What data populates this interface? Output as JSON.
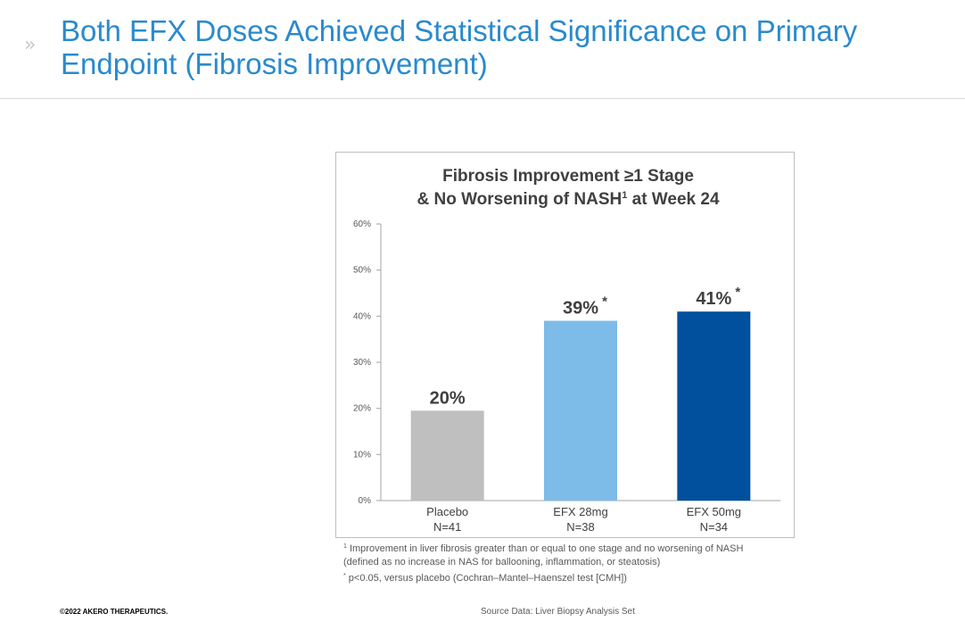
{
  "slide": {
    "chevron": "»",
    "title_line1": "Both EFX Doses Achieved Statistical Significance on Primary",
    "title_line2": "Endpoint (Fibrosis Improvement)"
  },
  "chart_data": {
    "type": "bar",
    "title_line1": "Fibrosis Improvement ≥1 Stage",
    "title_line2_pre": "& No Worsening of NASH",
    "title_line2_sup": "1",
    "title_line2_post": " at Week 24",
    "categories": [
      "Placebo",
      "EFX 28mg",
      "EFX 50mg"
    ],
    "sublabels": [
      "N=41",
      "N=38",
      "N=34"
    ],
    "values": [
      19.5,
      39,
      41
    ],
    "value_labels": [
      "20%",
      "39%",
      "41%"
    ],
    "significance": [
      "",
      "*",
      "*"
    ],
    "colors": [
      "#bfbfbf",
      "#7dbbe8",
      "#00509e"
    ],
    "ylim": [
      0,
      60
    ],
    "yticks": [
      0,
      10,
      20,
      30,
      40,
      50,
      60
    ],
    "ytick_labels": [
      "0%",
      "10%",
      "20%",
      "30%",
      "40%",
      "50%",
      "60%"
    ],
    "grid": false,
    "legend": "none"
  },
  "footnotes": {
    "fn1_marker": "1",
    "fn1_line1": " Improvement in liver fibrosis greater than or equal to one stage and no worsening of NASH",
    "fn1_line2": "(defined as no increase in NAS for ballooning, inflammation, or steatosis)",
    "fn2_marker": "*",
    "fn2_text": " p<0.05, versus placebo (Cochran–Mantel–Haenszel test [CMH])"
  },
  "footer": {
    "copyright": "©2022 AKERO THERAPEUTICS.",
    "source": "Source Data: Liver Biopsy Analysis Set"
  }
}
